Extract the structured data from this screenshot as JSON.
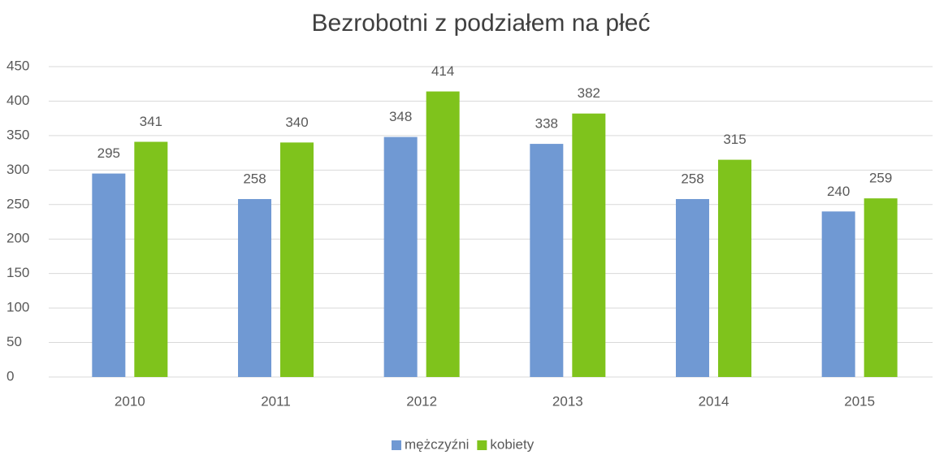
{
  "chart_data": {
    "type": "bar",
    "title": "Bezrobotni z podziałem na płeć",
    "categories": [
      "2010",
      "2011",
      "2012",
      "2013",
      "2014",
      "2015"
    ],
    "series": [
      {
        "name": "mężczyźni",
        "color": "#7099d3",
        "values": [
          295,
          258,
          348,
          338,
          258,
          240
        ]
      },
      {
        "name": "kobiety",
        "color": "#7fc31c",
        "values": [
          341,
          340,
          414,
          382,
          315,
          259
        ]
      }
    ],
    "ylim": [
      0,
      450
    ],
    "yticks": [
      0,
      50,
      100,
      150,
      200,
      250,
      300,
      350,
      400,
      450
    ],
    "grid": true,
    "legend": "bottom"
  }
}
